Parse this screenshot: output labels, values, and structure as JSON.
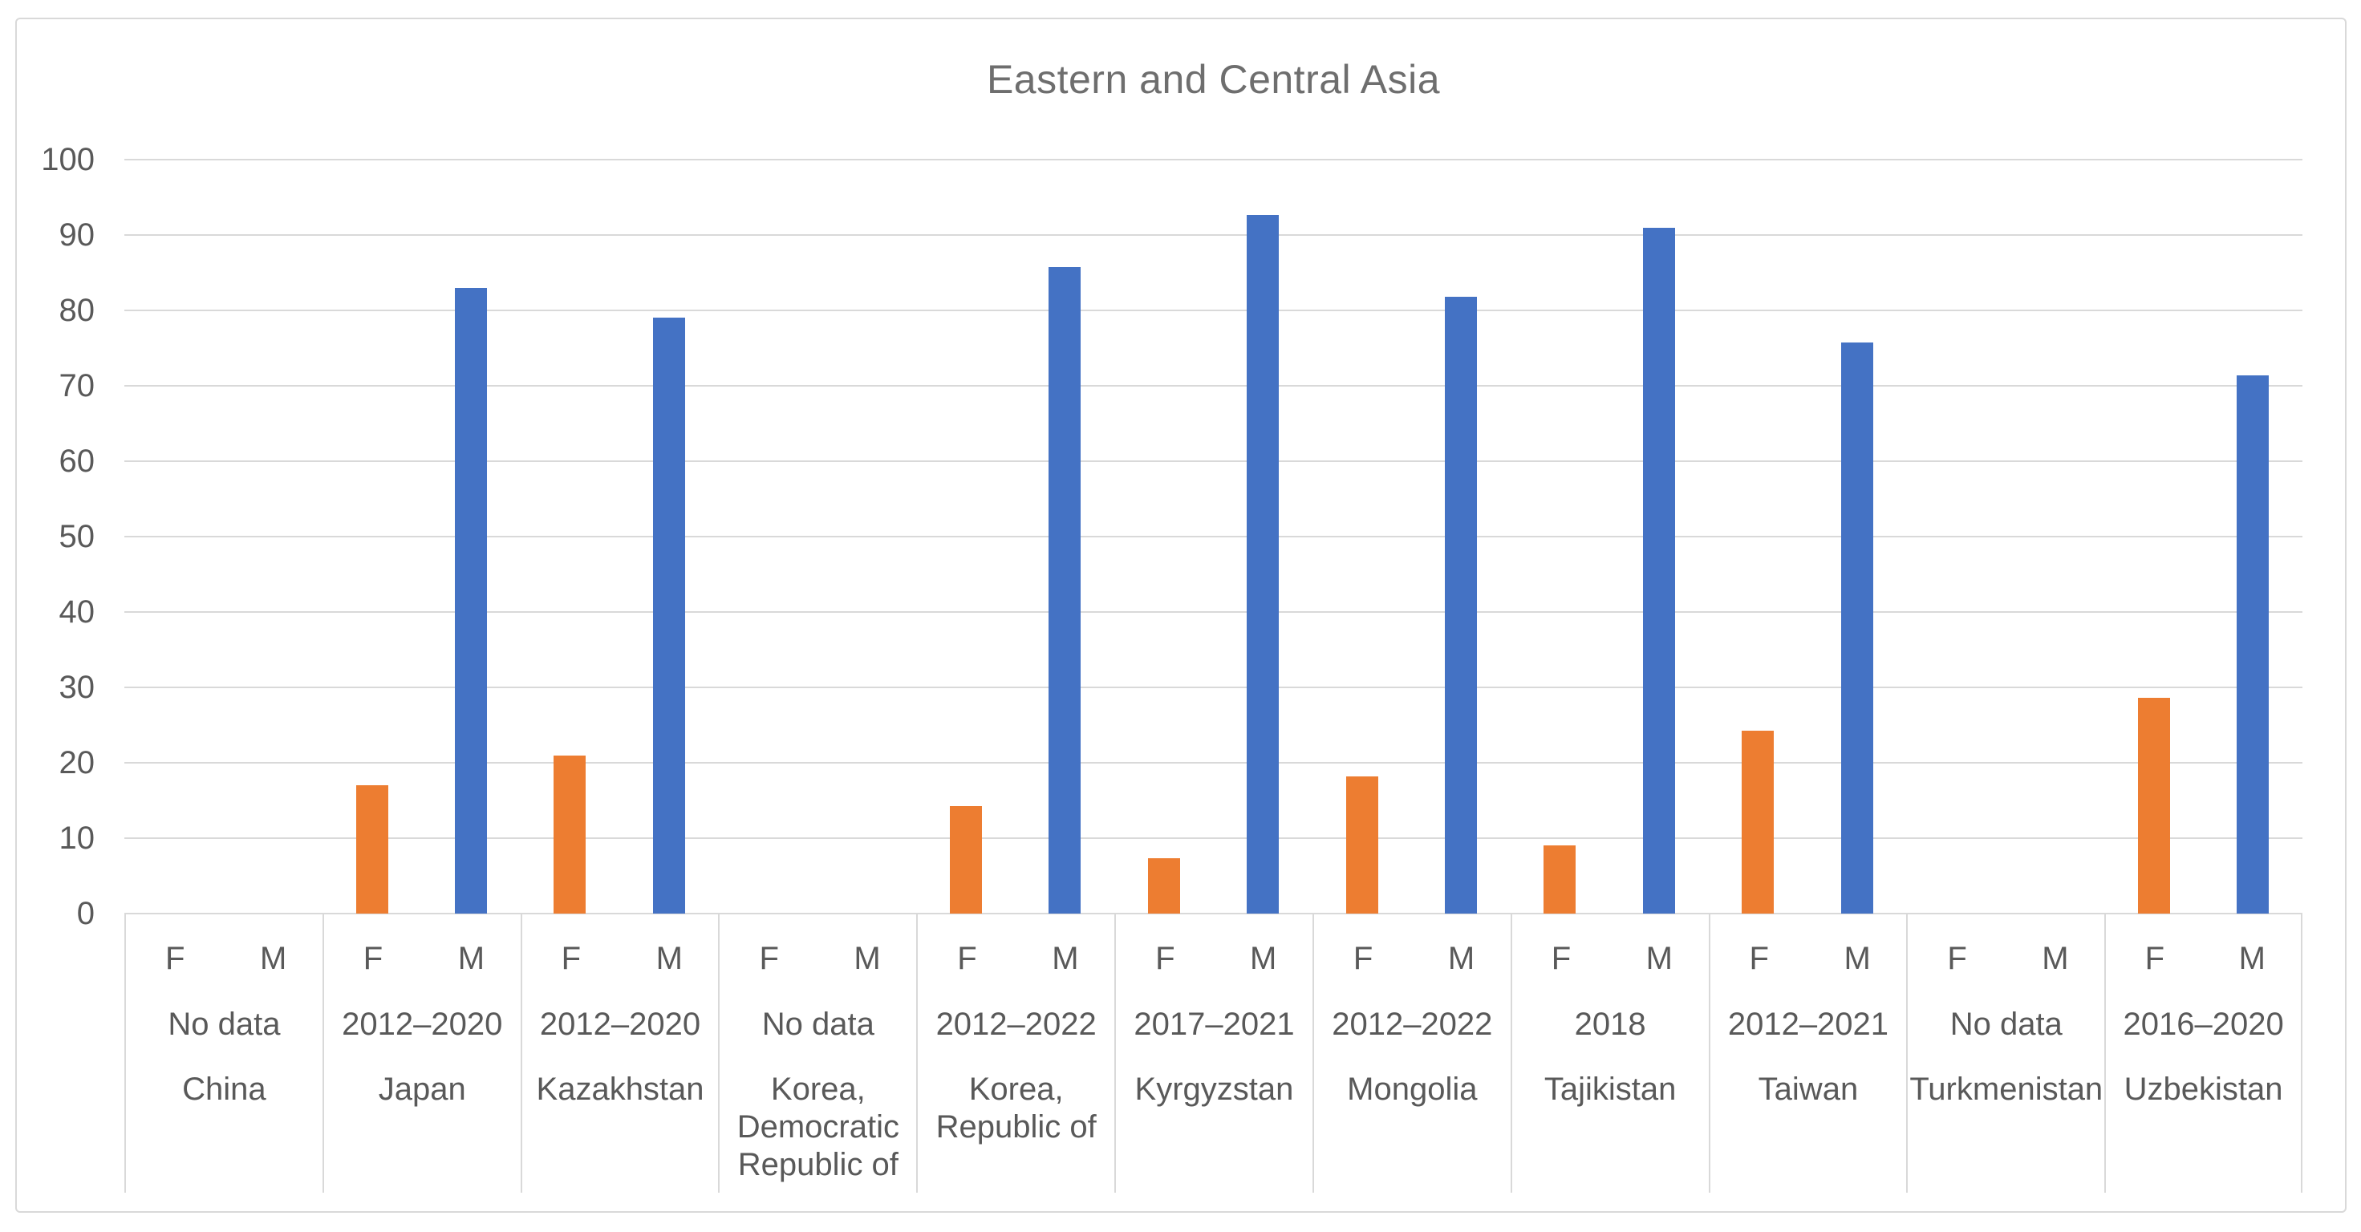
{
  "chart_data": {
    "type": "bar",
    "title": "Eastern and Central Asia",
    "categories": [
      "China",
      "Japan",
      "Kazakhstan",
      "Korea, Democratic Republic of",
      "Korea, Republic of",
      "Kyrgyzstan",
      "Mongolia",
      "Tajikistan",
      "Taiwan",
      "Turkmenistan",
      "Uzbekistan"
    ],
    "periods": [
      "No data",
      "2012–2020",
      "2012–2020",
      "No data",
      "2012–2022",
      "2017–2021",
      "2012–2022",
      "2018",
      "2012–2021",
      "No data",
      "2016–2020"
    ],
    "series": [
      {
        "name": "F",
        "color": "#ED7D31",
        "values": [
          null,
          17.0,
          21.0,
          null,
          14.3,
          7.3,
          18.2,
          9.0,
          24.3,
          null,
          28.6
        ]
      },
      {
        "name": "M",
        "color": "#4472C4",
        "values": [
          null,
          83.0,
          79.0,
          null,
          85.7,
          92.7,
          81.8,
          91.0,
          75.7,
          null,
          71.4
        ]
      }
    ],
    "ylim": [
      0,
      100
    ],
    "ytick_step": 10,
    "yticks": [
      0,
      10,
      20,
      30,
      40,
      50,
      60,
      70,
      80,
      90,
      100
    ],
    "grid": true,
    "legend": "none",
    "colors": {
      "grid": "#D9D9D9",
      "axis_text": "#595959",
      "title_text": "#6E6E6E",
      "frame_border": "#D9D9D9"
    }
  }
}
